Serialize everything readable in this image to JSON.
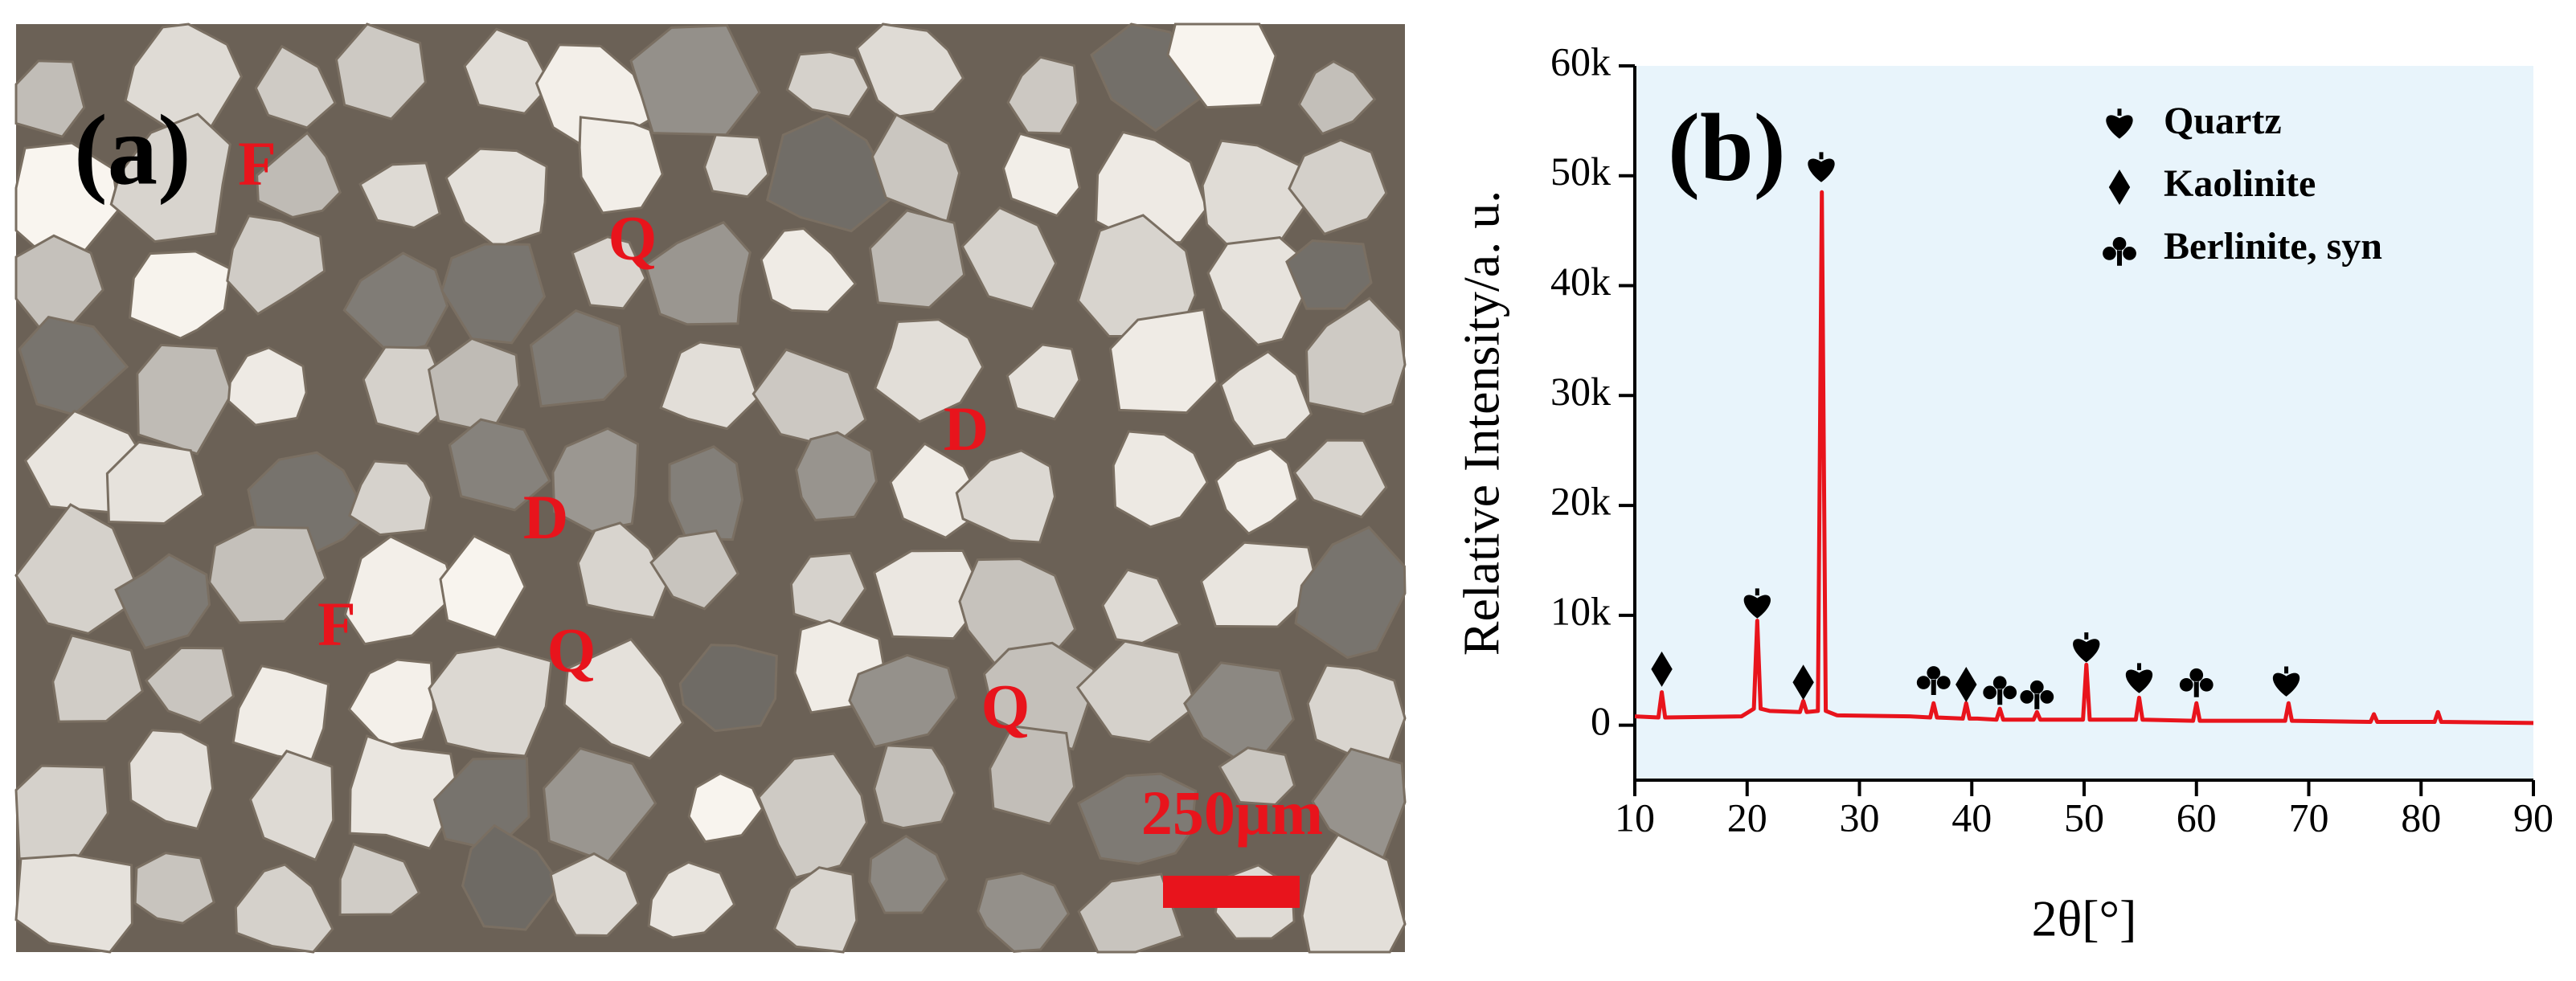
{
  "image_panel": {
    "label": "(a)",
    "annotations": [
      "F",
      "Q",
      "D",
      "D",
      "F",
      "Q",
      "Q"
    ],
    "scale_bar": "250μm"
  },
  "chart_data": {
    "type": "line",
    "panel_label": "(b)",
    "xlabel": "2θ[°]",
    "ylabel": "Relative Intensity/a. u.",
    "color": "#e8141c",
    "background": "#e8f4fb",
    "x": [
      10,
      12.1,
      12.4,
      12.7,
      19.5,
      20.6,
      20.9,
      21.2,
      22,
      24.7,
      25.0,
      25.3,
      26.3,
      26.65,
      27.0,
      28,
      34.5,
      36.3,
      36.6,
      36.9,
      39.2,
      39.5,
      39.8,
      40.5,
      42.2,
      42.5,
      42.8,
      45.5,
      45.8,
      46.1,
      49.9,
      50.2,
      50.5,
      54.6,
      54.9,
      55.2,
      59.7,
      60.0,
      60.3,
      67.9,
      68.2,
      68.5,
      75.5,
      75.8,
      76.1,
      81.2,
      81.5,
      81.8,
      90
    ],
    "values": [
      800,
      700,
      3000,
      700,
      800,
      1500,
      9500,
      1500,
      1300,
      1200,
      2200,
      1200,
      1300,
      48500,
      1300,
      900,
      800,
      700,
      2000,
      700,
      600,
      2000,
      600,
      600,
      500,
      1500,
      500,
      500,
      1200,
      500,
      500,
      5500,
      500,
      500,
      2500,
      500,
      400,
      2000,
      400,
      400,
      2000,
      400,
      300,
      1000,
      300,
      300,
      1200,
      300,
      200
    ],
    "xlim": [
      10,
      90
    ],
    "xticks": [
      10,
      20,
      30,
      40,
      50,
      60,
      70,
      80,
      90
    ],
    "ylim": [
      -5000,
      60000
    ],
    "yticks": [
      0,
      {
        "value": 10000,
        "label": "10k"
      },
      {
        "value": 20000,
        "label": "20k"
      },
      {
        "value": 30000,
        "label": "30k"
      },
      {
        "value": 40000,
        "label": "40k"
      },
      {
        "value": 50000,
        "label": "50k"
      },
      {
        "value": 60000,
        "label": "60k"
      }
    ],
    "phases": [
      {
        "name": "Quartz",
        "symbol": "heart"
      },
      {
        "name": "Kaolinite",
        "symbol": "diamond"
      },
      {
        "name": "Berlinite, syn",
        "symbol": "club"
      }
    ],
    "legend": "upper right",
    "peak_markers": [
      {
        "phase": 1,
        "x": 12.4,
        "y": 5100
      },
      {
        "phase": 0,
        "x": 20.9,
        "y": 11000
      },
      {
        "phase": 1,
        "x": 25.0,
        "y": 3900
      },
      {
        "phase": 0,
        "x": 26.6,
        "y": 50700
      },
      {
        "phase": 2,
        "x": 36.6,
        "y": 4200
      },
      {
        "phase": 1,
        "x": 39.5,
        "y": 3700
      },
      {
        "phase": 2,
        "x": 42.5,
        "y": 3300
      },
      {
        "phase": 2,
        "x": 45.8,
        "y": 2900
      },
      {
        "phase": 0,
        "x": 50.2,
        "y": 7000
      },
      {
        "phase": 0,
        "x": 54.9,
        "y": 4200
      },
      {
        "phase": 2,
        "x": 60.0,
        "y": 4000
      },
      {
        "phase": 0,
        "x": 68.0,
        "y": 3900
      }
    ]
  }
}
